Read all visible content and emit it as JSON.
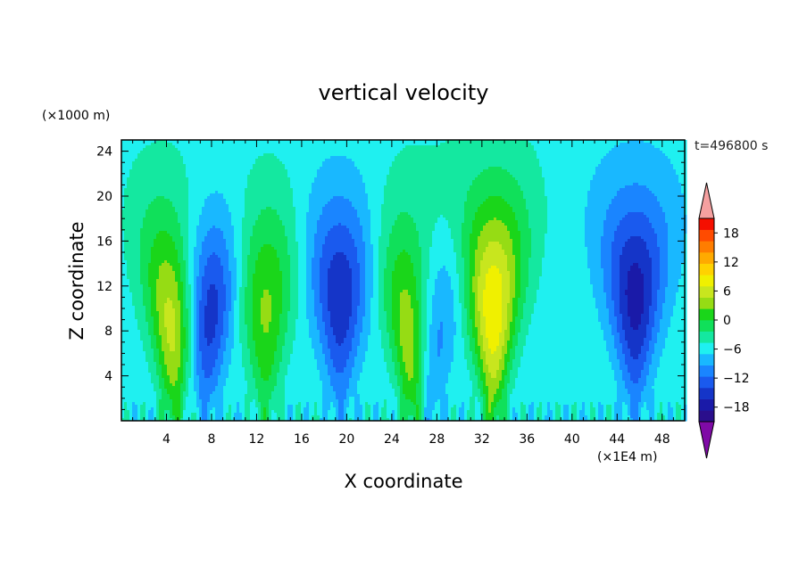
{
  "chart_data": {
    "type": "heatmap",
    "title": "vertical velocity",
    "xlabel": "X coordinate",
    "ylabel": "Z coordinate",
    "x_unit": "(×1E4 m)",
    "y_unit": "(×1000 m)",
    "time_label": "t=496800 s",
    "x_range": [
      0,
      50
    ],
    "y_range": [
      0,
      25
    ],
    "x_ticks": [
      "4",
      "8",
      "12",
      "16",
      "20",
      "24",
      "28",
      "32",
      "36",
      "40",
      "44",
      "48"
    ],
    "x_tick_values": [
      4,
      8,
      12,
      16,
      20,
      24,
      28,
      32,
      36,
      40,
      44,
      48
    ],
    "y_ticks": [
      "4",
      "8",
      "12",
      "16",
      "20",
      "24"
    ],
    "y_tick_values": [
      4,
      8,
      12,
      16,
      20,
      24
    ],
    "colorbar": {
      "range": [
        -21,
        21
      ],
      "step": 3,
      "labels": [
        "18",
        "12",
        "6",
        "0",
        "−6",
        "−12",
        "−18"
      ],
      "label_values": [
        18,
        12,
        6,
        0,
        -6,
        -12,
        -18
      ],
      "colors": [
        "#7f0aa6",
        "#2a0e8c",
        "#1a1aa8",
        "#1535c8",
        "#1a5aee",
        "#1a85ff",
        "#19b8ff",
        "#1ff0f0",
        "#14e8a0",
        "#10e05a",
        "#1ad61a",
        "#96dc14",
        "#c8e61e",
        "#f0f000",
        "#ffd200",
        "#ffaa00",
        "#ff7d00",
        "#ff4b00",
        "#f50f00",
        "#f5a0a0"
      ]
    },
    "features": [
      {
        "x": 4.6,
        "sign": 1,
        "peak": 16
      },
      {
        "x": 7.6,
        "sign": -1,
        "peak": -14
      },
      {
        "x": 12.8,
        "sign": 1,
        "peak": 11
      },
      {
        "x": 19.4,
        "sign": -1,
        "peak": -13
      },
      {
        "x": 25.8,
        "sign": 1,
        "peak": 17
      },
      {
        "x": 27.4,
        "sign": -1,
        "peak": -11
      },
      {
        "x": 33.0,
        "sign": 1,
        "peak": 19
      },
      {
        "x": 45.6,
        "sign": -1,
        "peak": -15
      }
    ],
    "grid": false
  }
}
